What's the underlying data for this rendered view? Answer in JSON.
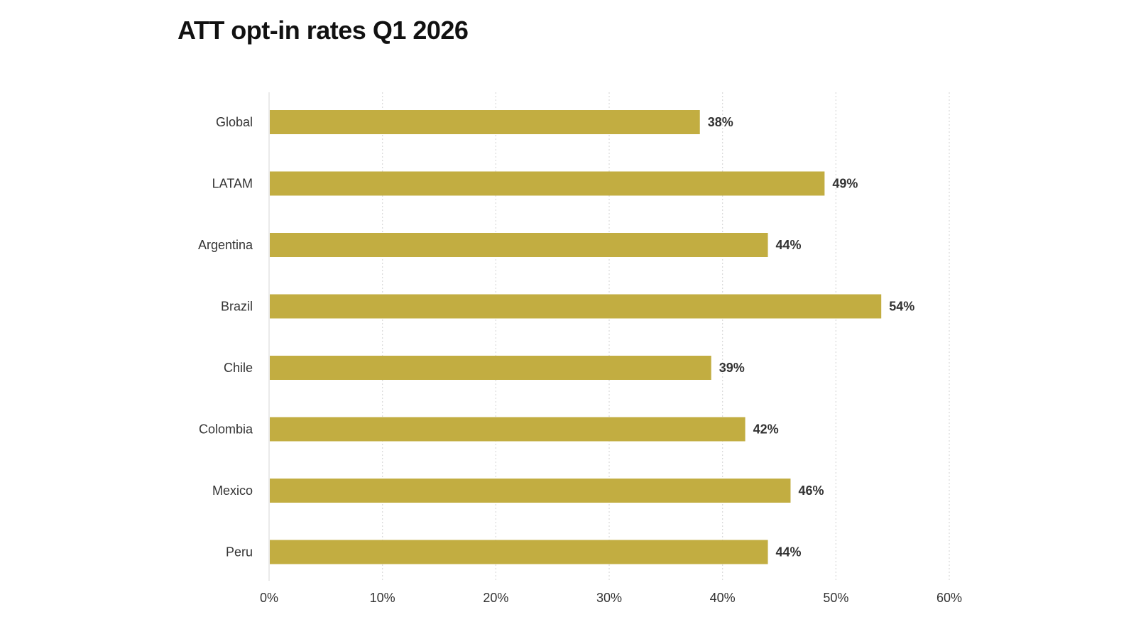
{
  "chart_data": {
    "type": "bar",
    "orientation": "horizontal",
    "title": "ATT opt-in rates Q1 2026",
    "categories": [
      "Global",
      "LATAM",
      "Argentina",
      "Brazil",
      "Chile",
      "Colombia",
      "Mexico",
      "Peru"
    ],
    "values": [
      38,
      49,
      44,
      54,
      39,
      42,
      46,
      44
    ],
    "value_labels": [
      "38%",
      "49%",
      "44%",
      "54%",
      "39%",
      "42%",
      "46%",
      "44%"
    ],
    "xlim": [
      0,
      60
    ],
    "x_ticks": [
      0,
      10,
      20,
      30,
      40,
      50,
      60
    ],
    "x_tick_labels": [
      "0%",
      "10%",
      "20%",
      "30%",
      "40%",
      "50%",
      "60%"
    ],
    "xlabel": "",
    "ylabel": "",
    "grid": "vertical dotted",
    "legend": "none",
    "bar_color": "#c2ad41",
    "grid_color": "#d9d9d9"
  }
}
